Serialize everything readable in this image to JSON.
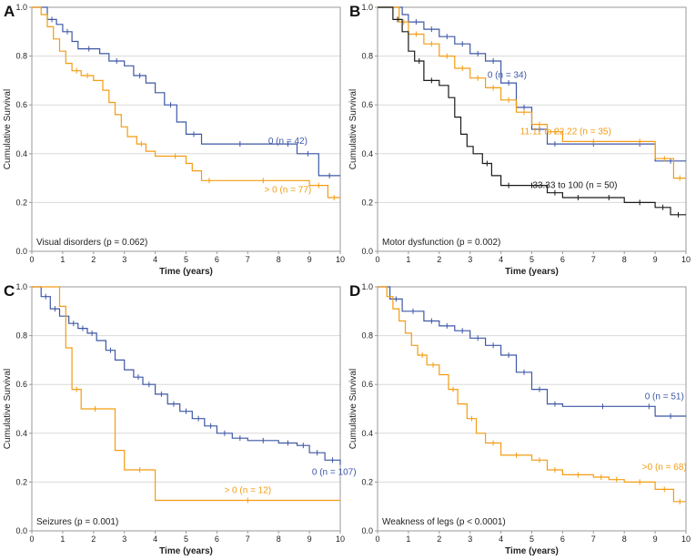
{
  "figure_caption": "",
  "colors": {
    "blue": "#3d57a6",
    "orange": "#f39c12",
    "black": "#1a1a1a",
    "grid": "#d9d9d9",
    "axis": "#9a9a9a",
    "label": "#222222"
  },
  "chart_data": [
    {
      "type": "line",
      "subtype": "kaplan-meier",
      "panel_letter": "A",
      "title": "",
      "xlabel": "Time (years)",
      "ylabel": "Cumulative Survival",
      "xlim": [
        0,
        10
      ],
      "ylim": [
        0,
        1
      ],
      "xticks": [
        "0",
        "1",
        "2",
        "3",
        "4",
        "5",
        "6",
        "7",
        "8",
        "9",
        "10"
      ],
      "yticks": [
        "0.0",
        "0.2",
        "0.4",
        "0.6",
        "0.8",
        "1.0"
      ],
      "grid": true,
      "annotation": "Visual disorders (p = 0.062)",
      "series": [
        {
          "name": "0 (n = 42)",
          "color": "blue",
          "x": [
            0,
            0.5,
            0.8,
            1.0,
            1.3,
            1.5,
            2.2,
            2.5,
            3.0,
            3.3,
            3.7,
            4.0,
            4.3,
            4.7,
            5.0,
            5.5,
            8.0,
            8.6,
            9.3,
            10
          ],
          "y": [
            1.0,
            0.95,
            0.93,
            0.9,
            0.86,
            0.83,
            0.81,
            0.78,
            0.76,
            0.72,
            0.69,
            0.65,
            0.6,
            0.53,
            0.48,
            0.44,
            0.44,
            0.4,
            0.31,
            0.31
          ],
          "label_x": 8.3,
          "label_y": 0.44
        },
        {
          "name": "> 0 (n = 77)",
          "color": "orange",
          "x": [
            0,
            0.3,
            0.5,
            0.7,
            0.9,
            1.1,
            1.3,
            1.6,
            2.0,
            2.3,
            2.5,
            2.7,
            2.9,
            3.1,
            3.4,
            3.7,
            4.0,
            4.3,
            5.0,
            5.2,
            5.5,
            6.0,
            9.0,
            9.6,
            10
          ],
          "y": [
            1.0,
            0.97,
            0.92,
            0.87,
            0.82,
            0.77,
            0.74,
            0.72,
            0.7,
            0.66,
            0.61,
            0.56,
            0.51,
            0.47,
            0.44,
            0.41,
            0.39,
            0.39,
            0.36,
            0.33,
            0.29,
            0.29,
            0.27,
            0.22,
            0.22
          ],
          "label_x": 8.3,
          "label_y": 0.24
        }
      ]
    },
    {
      "type": "line",
      "subtype": "kaplan-meier",
      "panel_letter": "B",
      "title": "",
      "xlabel": "Time (years)",
      "ylabel": "Cumulative Survival",
      "xlim": [
        0,
        10
      ],
      "ylim": [
        0,
        1
      ],
      "xticks": [
        "0",
        "1",
        "2",
        "3",
        "4",
        "5",
        "6",
        "7",
        "8",
        "9",
        "10"
      ],
      "yticks": [
        "0.0",
        "0.2",
        "0.4",
        "0.6",
        "0.8",
        "1.0"
      ],
      "grid": true,
      "annotation": "Motor dysfunction (p = 0.002)",
      "series": [
        {
          "name": "0 (n = 34)",
          "color": "blue",
          "x": [
            0,
            0.8,
            1.0,
            1.5,
            2.0,
            2.5,
            3.0,
            3.5,
            4.0,
            4.5,
            5.0,
            5.5,
            6.0,
            8.0,
            9.0,
            10
          ],
          "y": [
            1.0,
            0.97,
            0.94,
            0.91,
            0.88,
            0.85,
            0.81,
            0.78,
            0.69,
            0.59,
            0.5,
            0.44,
            0.44,
            0.44,
            0.37,
            0.37
          ],
          "label_x": 4.2,
          "label_y": 0.71
        },
        {
          "name": "11.11 to 22.22 (n = 35)",
          "color": "orange",
          "x": [
            0,
            0.7,
            1.0,
            1.5,
            2.0,
            2.5,
            3.0,
            3.5,
            4.0,
            4.5,
            5.0,
            5.5,
            6.0,
            8.0,
            9.0,
            9.6,
            10
          ],
          "y": [
            1.0,
            0.94,
            0.89,
            0.85,
            0.8,
            0.75,
            0.71,
            0.67,
            0.62,
            0.57,
            0.52,
            0.49,
            0.45,
            0.45,
            0.38,
            0.3,
            0.3
          ],
          "label_x": 6.1,
          "label_y": 0.48
        },
        {
          "name": "33.33 to 100 (n = 50)",
          "color": "black",
          "x": [
            0,
            0.5,
            0.8,
            1.0,
            1.2,
            1.5,
            2.0,
            2.3,
            2.5,
            2.7,
            2.9,
            3.1,
            3.4,
            3.7,
            4.0,
            4.5,
            5.5,
            6.0,
            7.0,
            8.0,
            9.0,
            9.5,
            10
          ],
          "y": [
            1.0,
            0.95,
            0.9,
            0.82,
            0.78,
            0.7,
            0.68,
            0.63,
            0.55,
            0.48,
            0.43,
            0.4,
            0.36,
            0.31,
            0.27,
            0.27,
            0.24,
            0.22,
            0.22,
            0.2,
            0.18,
            0.15,
            0.15
          ],
          "label_x": 6.4,
          "label_y": 0.26
        }
      ]
    },
    {
      "type": "line",
      "subtype": "kaplan-meier",
      "panel_letter": "C",
      "title": "",
      "xlabel": "Time (years)",
      "ylabel": "Cumulative Survival",
      "xlim": [
        0,
        10
      ],
      "ylim": [
        0,
        1
      ],
      "xticks": [
        "0",
        "1",
        "2",
        "3",
        "4",
        "5",
        "6",
        "7",
        "8",
        "9",
        "10"
      ],
      "yticks": [
        "0.0",
        "0.2",
        "0.4",
        "0.6",
        "0.8",
        "1.0"
      ],
      "grid": true,
      "annotation": "Seizures (p = 0.001)",
      "series": [
        {
          "name": "0 (n = 107)",
          "color": "blue",
          "x": [
            0,
            0.3,
            0.6,
            0.9,
            1.2,
            1.5,
            1.8,
            2.1,
            2.4,
            2.7,
            3.0,
            3.3,
            3.6,
            4.0,
            4.4,
            4.8,
            5.2,
            5.6,
            6.0,
            6.5,
            7.0,
            8.0,
            8.6,
            9.0,
            9.5,
            10
          ],
          "y": [
            1.0,
            0.96,
            0.91,
            0.88,
            0.85,
            0.83,
            0.81,
            0.78,
            0.74,
            0.7,
            0.66,
            0.63,
            0.6,
            0.56,
            0.52,
            0.49,
            0.46,
            0.43,
            0.4,
            0.38,
            0.37,
            0.36,
            0.35,
            0.32,
            0.29,
            0.27
          ],
          "label_x": 9.8,
          "label_y": 0.23
        },
        {
          "name": "> 0 (n = 12)",
          "color": "orange",
          "x": [
            0,
            0.9,
            1.1,
            1.3,
            1.6,
            2.5,
            2.7,
            3.0,
            4.0,
            10
          ],
          "y": [
            1.0,
            0.92,
            0.75,
            0.58,
            0.5,
            0.5,
            0.33,
            0.25,
            0.125,
            0.125
          ],
          "label_x": 7.0,
          "label_y": 0.155
        }
      ]
    },
    {
      "type": "line",
      "subtype": "kaplan-meier",
      "panel_letter": "D",
      "title": "",
      "xlabel": "Time (years)",
      "ylabel": "Cumulative Survival",
      "xlim": [
        0,
        10
      ],
      "ylim": [
        0,
        1
      ],
      "xticks": [
        "0",
        "1",
        "2",
        "3",
        "4",
        "5",
        "6",
        "7",
        "8",
        "9",
        "10"
      ],
      "yticks": [
        "0.0",
        "0.2",
        "0.4",
        "0.6",
        "0.8",
        "1.0"
      ],
      "grid": true,
      "annotation": "Weakness of legs (p < 0.0001)",
      "series": [
        {
          "name": "0 (n = 51)",
          "color": "blue",
          "x": [
            0,
            0.4,
            0.8,
            1.5,
            2.0,
            2.5,
            3.0,
            3.5,
            4.0,
            4.5,
            5.0,
            5.5,
            6.0,
            8.6,
            9.0,
            10
          ],
          "y": [
            1.0,
            0.95,
            0.9,
            0.86,
            0.84,
            0.82,
            0.79,
            0.76,
            0.72,
            0.65,
            0.58,
            0.52,
            0.51,
            0.51,
            0.47,
            0.47
          ],
          "label_x": 9.3,
          "label_y": 0.54
        },
        {
          "name": ">0 (n = 68)",
          "color": "orange",
          "x": [
            0,
            0.3,
            0.5,
            0.7,
            0.9,
            1.1,
            1.3,
            1.6,
            2.0,
            2.3,
            2.6,
            2.9,
            3.2,
            3.5,
            4.0,
            5.0,
            5.5,
            6.0,
            7.0,
            7.5,
            8.0,
            9.0,
            9.6,
            10
          ],
          "y": [
            1.0,
            0.96,
            0.91,
            0.86,
            0.81,
            0.76,
            0.72,
            0.68,
            0.64,
            0.58,
            0.52,
            0.46,
            0.4,
            0.36,
            0.31,
            0.29,
            0.25,
            0.23,
            0.22,
            0.21,
            0.2,
            0.17,
            0.12,
            0.12
          ],
          "label_x": 9.3,
          "label_y": 0.25
        }
      ]
    }
  ]
}
